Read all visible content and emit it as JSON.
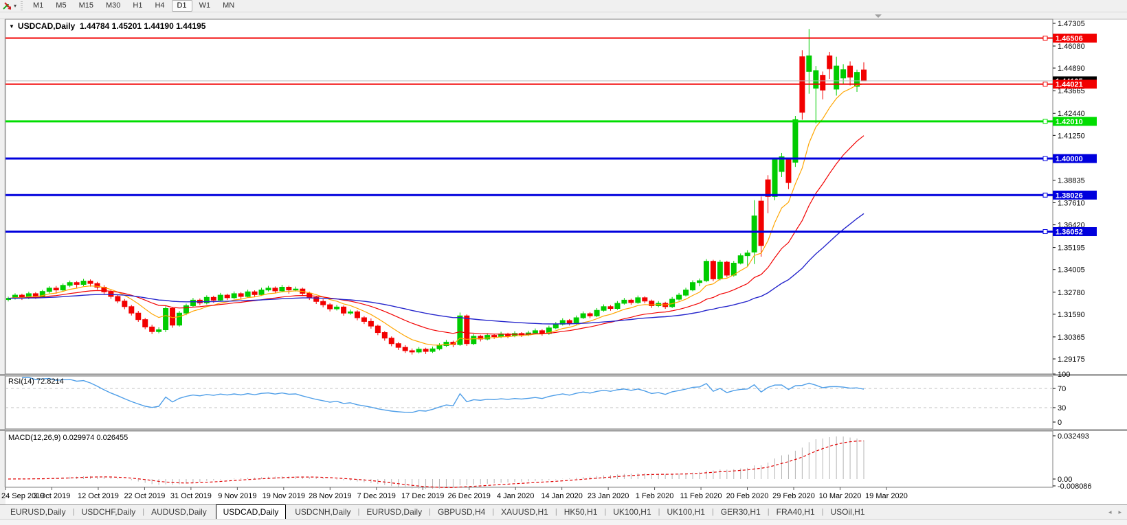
{
  "toolbar": {
    "chart_type_icon": "trend-arrows-icon",
    "dropdown_caret": "▾",
    "timeframes": [
      "M1",
      "M5",
      "M15",
      "M30",
      "H1",
      "H4",
      "D1",
      "W1",
      "MN"
    ],
    "active_timeframe": "D1"
  },
  "chart": {
    "dropdown_icon": "▼",
    "symbol": "USDCAD,Daily",
    "ohlc_line": "1.44784 1.45201 1.44190 1.44195",
    "price_ticks": [
      "1.47305",
      "1.46080",
      "1.44890",
      "1.43665",
      "1.42440",
      "1.41250",
      "1.38835",
      "1.37610",
      "1.36420",
      "1.35195",
      "1.34005",
      "1.32780",
      "1.31590",
      "1.30365",
      "1.29175"
    ],
    "hlines": [
      {
        "label": "1.46506",
        "value": 1.46506,
        "color": "#f20000",
        "width": 2
      },
      {
        "label": "1.44021",
        "value": 1.44021,
        "color": "#f20000",
        "width": 2
      },
      {
        "label": "1.42010",
        "value": 1.4201,
        "color": "#00dd00",
        "width": 3
      },
      {
        "label": "1.40000",
        "value": 1.4,
        "color": "#0000dd",
        "width": 3
      },
      {
        "label": "1.38026",
        "value": 1.38026,
        "color": "#0000dd",
        "width": 3
      },
      {
        "label": "1.36052",
        "value": 1.36052,
        "color": "#0000dd",
        "width": 3
      }
    ],
    "current_price": {
      "value": 1.44195,
      "label": "1.44195",
      "line_color": "#b8b8b8",
      "label_bg": "#000000",
      "label_fg": "#ffffff"
    },
    "colors": {
      "bull": "#00cc00",
      "bear": "#f20000",
      "ma_fast": "#ffa500",
      "ma_mid": "#f20000",
      "ma_slow": "#2626cc",
      "rsi_line": "#4e9ee8",
      "rsi_level": "#c0c0c0",
      "macd_bar": "#b4b4b4",
      "macd_signal": "#e00000",
      "axis_text": "#000000",
      "panel_border": "#7f7f7f",
      "shift_marker": "#a0a0a0"
    }
  },
  "chart_data": {
    "type": "candlestick",
    "symbol": "USDCAD",
    "timeframe": "Daily",
    "title": "USDCAD,Daily 1.44784 1.45201 1.44190 1.44195",
    "x_axis_dates": [
      "24 Sep 2019",
      "3 Oct 2019",
      "12 Oct 2019",
      "22 Oct 2019",
      "31 Oct 2019",
      "9 Nov 2019",
      "19 Nov 2019",
      "28 Nov 2019",
      "7 Dec 2019",
      "17 Dec 2019",
      "26 Dec 2019",
      "4 Jan 2020",
      "14 Jan 2020",
      "23 Jan 2020",
      "1 Feb 2020",
      "11 Feb 2020",
      "20 Feb 2020",
      "29 Feb 2020",
      "10 Mar 2020",
      "19 Mar 2020"
    ],
    "y_axis_range": [
      1.29175,
      1.47305
    ],
    "indicators": {
      "ma_periods": [
        8,
        21,
        55
      ],
      "rsi_period": 14,
      "macd_params": [
        12,
        26,
        9
      ],
      "rsi_levels": [
        70,
        30
      ]
    },
    "candles": [
      [
        1.3238,
        1.3254,
        1.3228,
        1.3245
      ],
      [
        1.3245,
        1.3272,
        1.3238,
        1.3262
      ],
      [
        1.3262,
        1.327,
        1.3236,
        1.3248
      ],
      [
        1.3248,
        1.3281,
        1.324,
        1.327
      ],
      [
        1.327,
        1.3278,
        1.3242,
        1.3255
      ],
      [
        1.3255,
        1.3291,
        1.3246,
        1.3282
      ],
      [
        1.3282,
        1.331,
        1.3272,
        1.33
      ],
      [
        1.33,
        1.3312,
        1.327,
        1.329
      ],
      [
        1.329,
        1.3325,
        1.3281,
        1.3315
      ],
      [
        1.3315,
        1.3341,
        1.3305,
        1.333
      ],
      [
        1.333,
        1.3338,
        1.3302,
        1.332
      ],
      [
        1.332,
        1.335,
        1.3311,
        1.3338
      ],
      [
        1.3338,
        1.3347,
        1.3308,
        1.3325
      ],
      [
        1.3325,
        1.3334,
        1.3292,
        1.3305
      ],
      [
        1.3305,
        1.3316,
        1.3266,
        1.328
      ],
      [
        1.328,
        1.3289,
        1.3242,
        1.3255
      ],
      [
        1.3255,
        1.3266,
        1.3218,
        1.323
      ],
      [
        1.323,
        1.3241,
        1.3186,
        1.32
      ],
      [
        1.32,
        1.3209,
        1.3152,
        1.3165
      ],
      [
        1.3165,
        1.3177,
        1.3118,
        1.313
      ],
      [
        1.313,
        1.3139,
        1.3078,
        1.309
      ],
      [
        1.309,
        1.3102,
        1.3052,
        1.3065
      ],
      [
        1.3065,
        1.3088,
        1.3056,
        1.3075
      ],
      [
        1.3075,
        1.3202,
        1.3062,
        1.319
      ],
      [
        1.319,
        1.3198,
        1.3086,
        1.31
      ],
      [
        1.31,
        1.3176,
        1.3092,
        1.3165
      ],
      [
        1.3165,
        1.3216,
        1.3154,
        1.3205
      ],
      [
        1.3205,
        1.3247,
        1.3196,
        1.3235
      ],
      [
        1.3235,
        1.3244,
        1.3208,
        1.322
      ],
      [
        1.322,
        1.3261,
        1.3212,
        1.325
      ],
      [
        1.325,
        1.3259,
        1.3221,
        1.3235
      ],
      [
        1.3235,
        1.3274,
        1.3228,
        1.3262
      ],
      [
        1.3262,
        1.327,
        1.3236,
        1.3248
      ],
      [
        1.3248,
        1.3282,
        1.3241,
        1.327
      ],
      [
        1.327,
        1.3278,
        1.3242,
        1.3255
      ],
      [
        1.3255,
        1.3292,
        1.3248,
        1.328
      ],
      [
        1.328,
        1.3288,
        1.3252,
        1.3265
      ],
      [
        1.3265,
        1.3302,
        1.3258,
        1.329
      ],
      [
        1.329,
        1.3312,
        1.3282,
        1.33
      ],
      [
        1.33,
        1.3309,
        1.3272,
        1.3285
      ],
      [
        1.3285,
        1.3318,
        1.3277,
        1.3305
      ],
      [
        1.3305,
        1.3313,
        1.327,
        1.329
      ],
      [
        1.329,
        1.3308,
        1.3282,
        1.3295
      ],
      [
        1.3295,
        1.3303,
        1.3258,
        1.3272
      ],
      [
        1.3272,
        1.3281,
        1.3236,
        1.325
      ],
      [
        1.325,
        1.3259,
        1.3214,
        1.3228
      ],
      [
        1.3228,
        1.324,
        1.3196,
        1.321
      ],
      [
        1.321,
        1.3219,
        1.3174,
        1.3188
      ],
      [
        1.3188,
        1.321,
        1.3179,
        1.3198
      ],
      [
        1.3198,
        1.3206,
        1.3151,
        1.3165
      ],
      [
        1.3165,
        1.3184,
        1.3156,
        1.3172
      ],
      [
        1.3172,
        1.318,
        1.3126,
        1.314
      ],
      [
        1.314,
        1.3149,
        1.3106,
        1.312
      ],
      [
        1.312,
        1.3136,
        1.3081,
        1.3095
      ],
      [
        1.3095,
        1.3103,
        1.3046,
        1.306
      ],
      [
        1.306,
        1.3068,
        1.3016,
        1.303
      ],
      [
        1.303,
        1.3039,
        1.2986,
        1.3
      ],
      [
        1.3,
        1.3009,
        1.2966,
        1.298
      ],
      [
        1.298,
        1.2992,
        1.295,
        1.2962
      ],
      [
        1.2962,
        1.2974,
        1.2941,
        1.2955
      ],
      [
        1.2955,
        1.2982,
        1.2947,
        1.297
      ],
      [
        1.297,
        1.2978,
        1.2944,
        1.2958
      ],
      [
        1.2958,
        1.2984,
        1.295,
        1.2972
      ],
      [
        1.2972,
        1.3002,
        1.2964,
        1.299
      ],
      [
        1.299,
        1.302,
        1.2982,
        1.3008
      ],
      [
        1.3008,
        1.3016,
        1.2981,
        1.2995
      ],
      [
        1.2995,
        1.3168,
        1.2988,
        1.315
      ],
      [
        1.315,
        1.3158,
        1.2988,
        1.3
      ],
      [
        1.3,
        1.3052,
        1.2992,
        1.304
      ],
      [
        1.304,
        1.3048,
        1.3012,
        1.3025
      ],
      [
        1.3025,
        1.3057,
        1.3018,
        1.3045
      ],
      [
        1.3045,
        1.3052,
        1.3026,
        1.3038
      ],
      [
        1.3038,
        1.3064,
        1.303,
        1.3052
      ],
      [
        1.3052,
        1.3059,
        1.303,
        1.3042
      ],
      [
        1.3042,
        1.3067,
        1.3035,
        1.3055
      ],
      [
        1.3055,
        1.3062,
        1.3036,
        1.3048
      ],
      [
        1.3048,
        1.307,
        1.3041,
        1.3058
      ],
      [
        1.3058,
        1.3082,
        1.305,
        1.307
      ],
      [
        1.307,
        1.3078,
        1.3043,
        1.3055
      ],
      [
        1.3055,
        1.3097,
        1.3048,
        1.3085
      ],
      [
        1.3085,
        1.3117,
        1.3078,
        1.3105
      ],
      [
        1.3105,
        1.3137,
        1.3098,
        1.3125
      ],
      [
        1.3125,
        1.3133,
        1.3098,
        1.311
      ],
      [
        1.311,
        1.3152,
        1.3103,
        1.314
      ],
      [
        1.314,
        1.3174,
        1.3133,
        1.3162
      ],
      [
        1.3162,
        1.317,
        1.3138,
        1.315
      ],
      [
        1.315,
        1.3192,
        1.3143,
        1.318
      ],
      [
        1.318,
        1.3212,
        1.3173,
        1.32
      ],
      [
        1.32,
        1.3208,
        1.3178,
        1.319
      ],
      [
        1.319,
        1.323,
        1.3183,
        1.3218
      ],
      [
        1.3218,
        1.3247,
        1.3211,
        1.3235
      ],
      [
        1.3235,
        1.3243,
        1.321,
        1.3222
      ],
      [
        1.3222,
        1.326,
        1.3215,
        1.3248
      ],
      [
        1.3248,
        1.3256,
        1.3218,
        1.323
      ],
      [
        1.323,
        1.3238,
        1.3193,
        1.3205
      ],
      [
        1.3205,
        1.323,
        1.3197,
        1.3218
      ],
      [
        1.3218,
        1.3226,
        1.3188,
        1.32
      ],
      [
        1.32,
        1.3252,
        1.3192,
        1.324
      ],
      [
        1.324,
        1.3274,
        1.3233,
        1.3262
      ],
      [
        1.3262,
        1.3302,
        1.3255,
        1.329
      ],
      [
        1.329,
        1.3342,
        1.3283,
        1.333
      ],
      [
        1.333,
        1.3352,
        1.331,
        1.334
      ],
      [
        1.334,
        1.3457,
        1.3332,
        1.3445
      ],
      [
        1.3445,
        1.3453,
        1.3338,
        1.335
      ],
      [
        1.335,
        1.3452,
        1.3342,
        1.344
      ],
      [
        1.344,
        1.3448,
        1.3358,
        1.337
      ],
      [
        1.337,
        1.3447,
        1.3362,
        1.3435
      ],
      [
        1.3435,
        1.3487,
        1.3428,
        1.3475
      ],
      [
        1.3475,
        1.3505,
        1.342,
        1.349
      ],
      [
        1.3495,
        1.3775,
        1.343,
        1.369
      ],
      [
        1.377,
        1.3795,
        1.347,
        1.353
      ],
      [
        1.3885,
        1.391,
        1.3705,
        1.3795
      ],
      [
        1.3795,
        1.4005,
        1.3775,
        1.3995
      ],
      [
        1.393,
        1.403,
        1.39,
        1.401
      ],
      [
        1.3995,
        1.4005,
        1.3835,
        1.387
      ],
      [
        1.398,
        1.423,
        1.3955,
        1.421
      ],
      [
        1.455,
        1.4585,
        1.421,
        1.425
      ],
      [
        1.447,
        1.47,
        1.435,
        1.4555
      ],
      [
        1.438,
        1.45,
        1.419,
        1.4475
      ],
      [
        1.445,
        1.447,
        1.432,
        1.437
      ],
      [
        1.4555,
        1.4575,
        1.443,
        1.4485
      ],
      [
        1.4375,
        1.455,
        1.434,
        1.45
      ],
      [
        1.4435,
        1.451,
        1.44,
        1.448
      ],
      [
        1.45,
        1.4525,
        1.4395,
        1.444
      ],
      [
        1.439,
        1.448,
        1.436,
        1.4465
      ],
      [
        1.44784,
        1.45201,
        1.4419,
        1.44195
      ]
    ]
  },
  "rsi_panel": {
    "label": "RSI(14) 72.8214",
    "value": 72.8214,
    "scale": [
      "100",
      "70",
      "30",
      "0"
    ]
  },
  "macd_panel": {
    "label": "MACD(12,26,9) 0.029974 0.026455",
    "macd_value": 0.029974,
    "signal_value": 0.026455,
    "scale": [
      "0.032493",
      "0.00",
      "-0.008086"
    ]
  },
  "tabs": {
    "items": [
      "EURUSD,Daily",
      "USDCHF,Daily",
      "AUDUSD,Daily",
      "USDCAD,Daily",
      "USDCNH,Daily",
      "EURUSD,Daily",
      "GBPUSD,H4",
      "XAUUSD,H1",
      "HK50,H1",
      "UK100,H1",
      "UK100,H1",
      "GER30,H1",
      "FRA40,H1",
      "USOil,H1"
    ],
    "active_index": 3,
    "scroll_left": "◂",
    "scroll_right": "▸"
  }
}
